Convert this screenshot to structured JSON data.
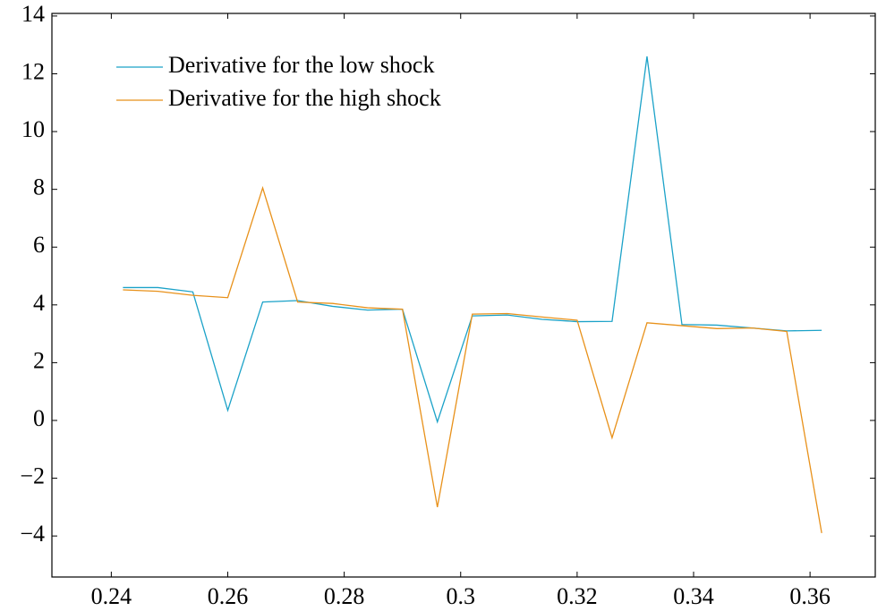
{
  "chart_data": {
    "type": "line",
    "x": [
      0.242,
      0.248,
      0.254,
      0.26,
      0.266,
      0.272,
      0.278,
      0.284,
      0.29,
      0.296,
      0.302,
      0.308,
      0.314,
      0.32,
      0.326,
      0.332,
      0.338,
      0.344,
      0.35,
      0.356,
      0.362
    ],
    "series": [
      {
        "name": "Derivative for the low shock",
        "color": "#1ba2c8",
        "values": [
          4.6,
          4.6,
          4.45,
          0.35,
          4.1,
          4.15,
          3.95,
          3.82,
          3.85,
          -0.05,
          3.62,
          3.65,
          3.5,
          3.42,
          3.43,
          12.6,
          3.32,
          3.3,
          3.2,
          3.1,
          3.12
        ]
      },
      {
        "name": "Derivative for the high shock",
        "color": "#e8911a",
        "values": [
          4.52,
          4.47,
          4.33,
          4.25,
          8.05,
          4.1,
          4.05,
          3.9,
          3.85,
          -3.0,
          3.68,
          3.7,
          3.58,
          3.47,
          -0.6,
          3.38,
          3.28,
          3.18,
          3.2,
          3.08,
          -3.9
        ]
      }
    ],
    "xlim": [
      0.2298,
      0.3712
    ],
    "ylim": [
      -5.42,
      14.09
    ],
    "xticks": [
      0.24,
      0.26,
      0.28,
      0.3,
      0.32,
      0.34,
      0.36
    ],
    "yticks": [
      {
        "value": -4,
        "label": "−4"
      },
      {
        "value": -2,
        "label": "−2"
      },
      0,
      2,
      4,
      6,
      8,
      10,
      12,
      14
    ],
    "legend": "upper left"
  }
}
